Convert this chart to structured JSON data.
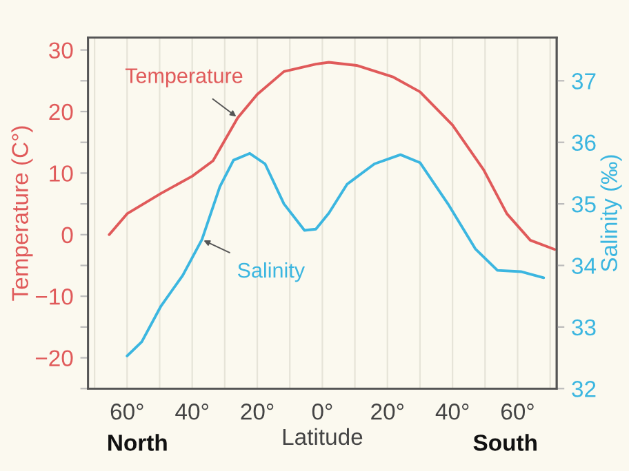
{
  "chart_data": {
    "type": "line",
    "xlabel": "Latitude",
    "ylabel": "Temperature (C°)",
    "y2label": "Salinity (‰)",
    "annotations": [
      "North",
      "South"
    ],
    "series": [
      {
        "name": "Temperature",
        "color": "#e05a5a",
        "x": [
          65.5,
          60,
          49.6,
          40,
          33.6,
          26,
          20,
          11.8,
          2,
          -2,
          -10.5,
          -21.8,
          -30,
          -40,
          -49.6,
          -56.7,
          -63.9,
          -71.4
        ],
        "values": [
          0,
          3.4,
          6.7,
          9.5,
          12,
          19,
          22.8,
          26.5,
          27.7,
          28,
          27.5,
          25.6,
          23.2,
          17.8,
          10.5,
          3.4,
          -0.9,
          -2.4
        ]
      },
      {
        "name": "Salinity",
        "color": "#3bb6e0",
        "axis": "y2",
        "x": [
          60,
          55.5,
          49.6,
          42.9,
          37,
          31.5,
          27.3,
          22.3,
          17.6,
          11.8,
          5.5,
          2,
          -2,
          -7.6,
          -16,
          -24,
          -30,
          -38.6,
          -47,
          -53.8,
          -61,
          -68
        ],
        "values": [
          32.53,
          32.76,
          33.34,
          33.84,
          34.42,
          35.28,
          35.71,
          35.82,
          35.65,
          35.0,
          34.57,
          34.59,
          34.85,
          35.32,
          35.65,
          35.8,
          35.67,
          35.0,
          34.27,
          33.92,
          33.9,
          33.8
        ]
      }
    ],
    "xlim": [
      72,
      -72
    ],
    "xticks": [
      {
        "value": 70,
        "label": null
      },
      {
        "value": 60,
        "label": "60°"
      },
      {
        "value": 50,
        "label": null
      },
      {
        "value": 40,
        "label": "40°"
      },
      {
        "value": 30,
        "label": null
      },
      {
        "value": 20,
        "label": "20°"
      },
      {
        "value": 10,
        "label": null
      },
      {
        "value": 0,
        "label": "0°"
      },
      {
        "value": -10,
        "label": null
      },
      {
        "value": -20,
        "label": "20°"
      },
      {
        "value": -30,
        "label": null
      },
      {
        "value": -40,
        "label": "40°"
      },
      {
        "value": -50,
        "label": null
      },
      {
        "value": -60,
        "label": "60°"
      },
      {
        "value": -70,
        "label": null
      }
    ],
    "ylim": [
      -25,
      32
    ],
    "yticks": [
      {
        "value": -25,
        "label": null
      },
      -20,
      {
        "value": -15,
        "label": null
      },
      -10,
      {
        "value": -5,
        "label": null
      },
      0,
      {
        "value": 5,
        "label": null
      },
      10,
      {
        "value": 15,
        "label": null
      },
      20,
      {
        "value": 25,
        "label": null
      },
      30
    ],
    "y2lim": [
      32,
      37.7
    ],
    "y2ticks": [
      32,
      33,
      34,
      35,
      36,
      37
    ],
    "grid": "x",
    "legend": false,
    "marker": "none",
    "line_style": "solid"
  }
}
